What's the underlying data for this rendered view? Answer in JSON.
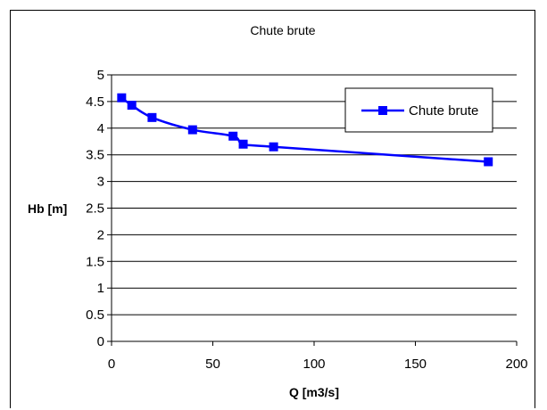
{
  "chart_data": {
    "type": "line",
    "title": "Chute brute",
    "xlabel": "Q [m3/s]",
    "ylabel": "Hb [m]",
    "xlim": [
      0,
      200
    ],
    "ylim": [
      0,
      5
    ],
    "x_ticks": [
      "0",
      "50",
      "100",
      "150",
      "200"
    ],
    "y_ticks": [
      "0",
      "0.5",
      "1",
      "1.5",
      "2",
      "2.5",
      "3",
      "3.5",
      "4",
      "4.5",
      "5"
    ],
    "grid": "horizontal",
    "legend_position": "top-right",
    "series": [
      {
        "name": "Chute brute",
        "color": "#0000ff",
        "marker": "square",
        "x": [
          5,
          10,
          20,
          40,
          60,
          65,
          80,
          186
        ],
        "y": [
          4.57,
          4.43,
          4.2,
          3.97,
          3.85,
          3.7,
          3.65,
          3.37
        ]
      }
    ]
  }
}
